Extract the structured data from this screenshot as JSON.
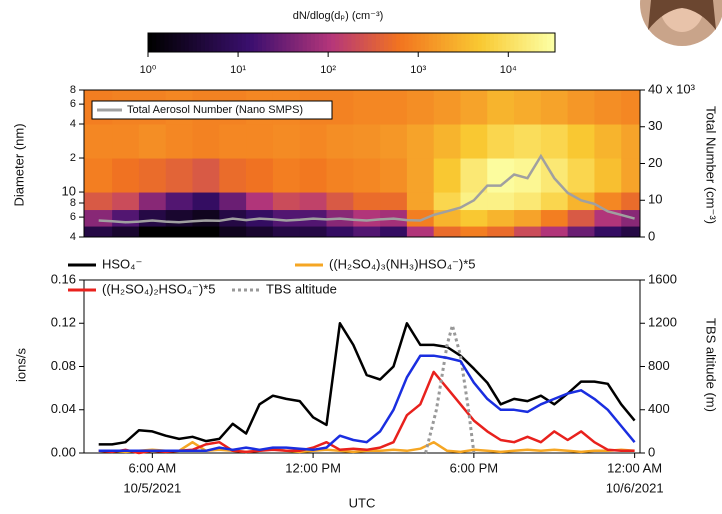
{
  "chart_data": [
    {
      "type": "heatmap",
      "ylabel": "Diameter (nm)",
      "y2label": "Total Number (cm⁻³)",
      "colorbar": {
        "label": "dN/dlog(dₚ) (cm⁻³)",
        "lim": [
          1,
          33000
        ],
        "ticks": [
          {
            "value": 1,
            "label": "10⁰"
          },
          {
            "value": 10,
            "label": "10¹"
          },
          {
            "value": 100,
            "label": "10²"
          },
          {
            "value": 1000,
            "label": "10³"
          },
          {
            "value": 10000,
            "label": "10⁴"
          }
        ]
      },
      "xlim": [
        3.45,
        24.2
      ],
      "ylim": [
        4,
        80
      ],
      "yscale": "log",
      "yticks": [
        {
          "value": 4,
          "label": "4"
        },
        {
          "value": 6,
          "label": "6"
        },
        {
          "value": 8,
          "label": "8"
        },
        10,
        {
          "value": 20,
          "label": "2"
        },
        {
          "value": 40,
          "label": "4"
        },
        {
          "value": 60,
          "label": "6"
        },
        {
          "value": 80,
          "label": "8"
        }
      ],
      "y2lim": [
        0,
        40
      ],
      "y2ticks": [
        0,
        10,
        20,
        30,
        {
          "value": 40,
          "label": "40 x 10³"
        }
      ],
      "x_bins": [
        3.45,
        4.5,
        5.5,
        6.5,
        7.5,
        8.5,
        9.5,
        10.5,
        11.5,
        12.5,
        13.5,
        14.5,
        15.5,
        16.5,
        17.5,
        18.5,
        19.5,
        20.5,
        21.5,
        22.5,
        23.5,
        24.2
      ],
      "y_bins": [
        4,
        5,
        7,
        10,
        20,
        40,
        80
      ],
      "values": [
        [
          5,
          3,
          1,
          1,
          1,
          2,
          3,
          5,
          5,
          10,
          20,
          10,
          100,
          500,
          800,
          500,
          200,
          100,
          30,
          10,
          5
        ],
        [
          50,
          20,
          5,
          3,
          2,
          5,
          10,
          20,
          20,
          50,
          100,
          80,
          800,
          3000,
          5000,
          3000,
          2000,
          800,
          300,
          100,
          50
        ],
        [
          300,
          200,
          50,
          20,
          10,
          30,
          100,
          200,
          150,
          300,
          500,
          500,
          2000,
          8000,
          20000,
          20000,
          15000,
          8000,
          3000,
          1000,
          500
        ],
        [
          800,
          600,
          500,
          400,
          300,
          500,
          600,
          800,
          700,
          900,
          1000,
          1200,
          2000,
          5000,
          15000,
          30000,
          25000,
          15000,
          8000,
          4000,
          2000
        ],
        [
          1000,
          1000,
          1200,
          1000,
          900,
          1000,
          1000,
          1100,
          1000,
          1200,
          1300,
          1500,
          2000,
          3000,
          5000,
          8000,
          10000,
          8000,
          5000,
          3000,
          2000
        ],
        [
          800,
          900,
          900,
          1000,
          900,
          900,
          1000,
          1000,
          900,
          900,
          1000,
          1000,
          1200,
          1500,
          2000,
          3000,
          2500,
          2000,
          1500,
          1200,
          1000
        ]
      ],
      "x": [
        4,
        4.5,
        5,
        5.5,
        6,
        6.5,
        7,
        7.5,
        8,
        8.5,
        9,
        9.5,
        10,
        10.5,
        11,
        11.5,
        12,
        12.5,
        13,
        13.5,
        14,
        14.5,
        15,
        15.5,
        16,
        16.5,
        17,
        17.5,
        18,
        18.5,
        19,
        19.5,
        20,
        20.5,
        21,
        21.5,
        22,
        22.5,
        23,
        23.5,
        24
      ],
      "series": [
        {
          "name": "Total Aerosol Number (Nano SMPS)",
          "color": "#a0a0a0",
          "axis": "y2",
          "values": [
            4.5,
            4.3,
            4,
            4.2,
            4.5,
            4.2,
            4,
            4.3,
            4.5,
            4.4,
            5,
            4.6,
            5,
            4.8,
            4.5,
            4.7,
            5,
            4.8,
            5,
            4.7,
            4.5,
            4.8,
            5,
            4.6,
            4.5,
            6,
            7,
            8,
            10,
            14,
            14,
            17,
            16,
            22,
            16,
            12,
            10,
            9,
            7,
            6,
            5
          ]
        }
      ]
    },
    {
      "type": "line",
      "xlabel": "UTC",
      "ylabel": "ions/s",
      "y2label": "TBS altitude (m)",
      "xlim": [
        3.45,
        24.2
      ],
      "xticks": [
        {
          "value": 6,
          "label": "6:00 AM",
          "date": "10/5/2021"
        },
        {
          "value": 12,
          "label": "12:00 PM"
        },
        {
          "value": 18,
          "label": "6:00 PM"
        },
        {
          "value": 24,
          "label": "12:00 AM",
          "date": "10/6/2021"
        }
      ],
      "ylim": [
        0,
        0.16
      ],
      "yticks": [
        {
          "value": 0,
          "label": "0.00"
        },
        0.04,
        0.08,
        0.12,
        0.16
      ],
      "y2lim": [
        0,
        1600
      ],
      "y2ticks": [
        0,
        400,
        800,
        1200,
        1600
      ],
      "x": [
        4,
        4.5,
        5,
        5.5,
        6,
        6.5,
        7,
        7.5,
        8,
        8.5,
        9,
        9.5,
        10,
        10.5,
        11,
        11.5,
        12,
        12.5,
        13,
        13.5,
        14,
        14.5,
        15,
        15.5,
        16,
        16.5,
        17,
        17.5,
        18,
        18.5,
        19,
        19.5,
        20,
        20.5,
        21,
        21.5,
        22,
        22.5,
        23,
        23.5,
        24
      ],
      "series": [
        {
          "name": "HSO₄⁻",
          "color": "#000000",
          "values": [
            0.008,
            0.008,
            0.01,
            0.021,
            0.02,
            0.016,
            0.013,
            0.015,
            0.011,
            0.013,
            0.027,
            0.018,
            0.045,
            0.053,
            0.05,
            0.048,
            0.033,
            0.026,
            0.12,
            0.1,
            0.072,
            0.068,
            0.08,
            0.12,
            0.1,
            0.1,
            0.098,
            0.09,
            0.078,
            0.065,
            0.045,
            0.05,
            0.048,
            0.053,
            0.045,
            0.055,
            0.066,
            0.066,
            0.064,
            0.045,
            0.03
          ]
        },
        {
          "name": "((H₂SO₄)₃(NH₃)HSO₄⁻)*5",
          "color": "#f5a623",
          "values": [
            0.002,
            0.002,
            0.001,
            0.002,
            0.003,
            0.002,
            0.002,
            0.01,
            0.002,
            0.003,
            0.002,
            0.001,
            0.002,
            0.004,
            0.002,
            0.001,
            0.002,
            0.003,
            0.002,
            0.001,
            0.002,
            0.002,
            0.003,
            0.002,
            0.004,
            0.01,
            0.002,
            0.001,
            0.003,
            0.002,
            0.001,
            0.002,
            0.003,
            0.002,
            0.003,
            0.002,
            0.001,
            0.002,
            0.002,
            0.003,
            0.002
          ]
        },
        {
          "name": "((H₂SO₄)₂HSO₄⁻)*5",
          "color": "#e8211d",
          "values": [
            0.002,
            0.001,
            0.003,
            0,
            0.002,
            0.001,
            0.002,
            0.003,
            0.008,
            0.01,
            0.002,
            0.001,
            0.002,
            0.003,
            0.002,
            0.002,
            0.005,
            0.01,
            0.003,
            0.004,
            0.003,
            0.005,
            0.01,
            0.035,
            0.045,
            0.075,
            0.06,
            0.045,
            0.03,
            0.02,
            0.012,
            0.01,
            0.015,
            0.01,
            0.02,
            0.012,
            0.02,
            0.01,
            0.003,
            0.002,
            0.002
          ]
        },
        {
          "name": "TBS altitude",
          "color": "#999999",
          "axis": "y2",
          "dashed": true,
          "x": [
            16.2,
            16.6,
            17,
            17.2,
            17.5,
            17.8,
            18
          ],
          "values": [
            0,
            400,
            1000,
            1180,
            900,
            400,
            0
          ]
        },
        {
          "color": "#1a2ee0",
          "values": [
            0.002,
            0.002,
            0.002,
            0.002,
            0.002,
            0.002,
            0.002,
            0.002,
            0.002,
            0.005,
            0.003,
            0.005,
            0.003,
            0.005,
            0.005,
            0.004,
            0.003,
            0.005,
            0.016,
            0.012,
            0.01,
            0.02,
            0.04,
            0.07,
            0.09,
            0.09,
            0.088,
            0.085,
            0.065,
            0.05,
            0.04,
            0.04,
            0.038,
            0.045,
            0.05,
            0.055,
            0.058,
            0.05,
            0.04,
            0.025,
            0.01
          ]
        }
      ]
    }
  ]
}
